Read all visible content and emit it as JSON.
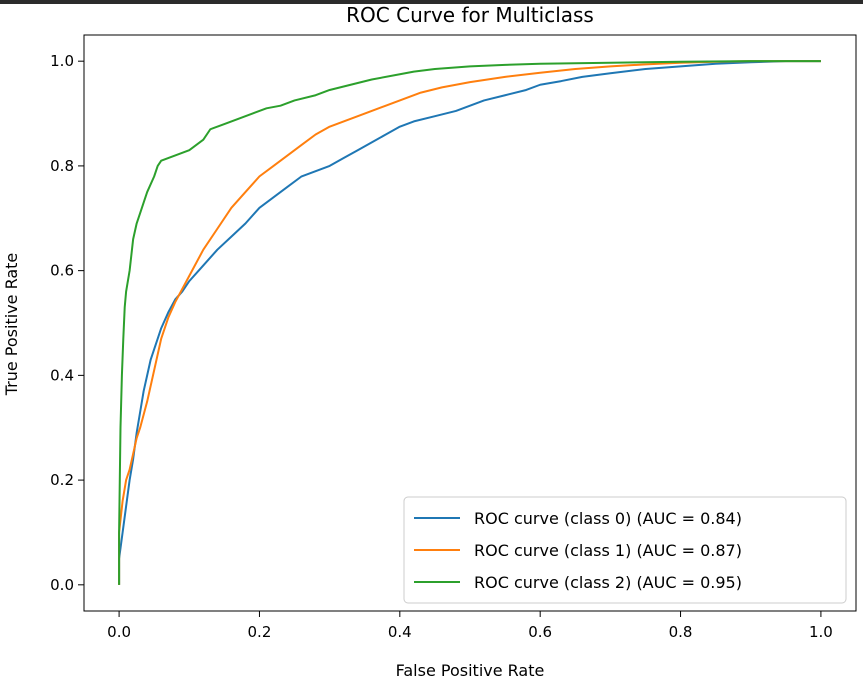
{
  "chart_data": {
    "type": "line",
    "title": "ROC Curve for Multiclass",
    "xlabel": "False Positive Rate",
    "ylabel": "True Positive Rate",
    "xlim": [
      -0.05,
      1.05
    ],
    "ylim": [
      -0.05,
      1.05
    ],
    "xticks": [
      0.0,
      0.2,
      0.4,
      0.6,
      0.8,
      1.0
    ],
    "xtick_labels": [
      "0.0",
      "0.2",
      "0.4",
      "0.6",
      "0.8",
      "1.0"
    ],
    "yticks": [
      0.0,
      0.2,
      0.4,
      0.6,
      0.8,
      1.0
    ],
    "ytick_labels": [
      "0.0",
      "0.2",
      "0.4",
      "0.6",
      "0.8",
      "1.0"
    ],
    "grid": false,
    "legend_position": "lower-right",
    "series": [
      {
        "name": "ROC curve (class 0) (AUC = 0.84)",
        "color": "#1f77b4",
        "x": [
          0.0,
          0.0,
          0.005,
          0.01,
          0.015,
          0.02,
          0.025,
          0.03,
          0.035,
          0.04,
          0.045,
          0.05,
          0.055,
          0.06,
          0.07,
          0.08,
          0.09,
          0.1,
          0.12,
          0.14,
          0.16,
          0.18,
          0.2,
          0.22,
          0.24,
          0.26,
          0.28,
          0.3,
          0.32,
          0.34,
          0.36,
          0.38,
          0.4,
          0.42,
          0.45,
          0.48,
          0.5,
          0.52,
          0.55,
          0.58,
          0.6,
          0.63,
          0.66,
          0.7,
          0.75,
          0.8,
          0.85,
          0.9,
          0.95,
          1.0
        ],
        "y": [
          0.0,
          0.05,
          0.1,
          0.15,
          0.2,
          0.24,
          0.29,
          0.33,
          0.37,
          0.4,
          0.43,
          0.45,
          0.47,
          0.49,
          0.52,
          0.545,
          0.56,
          0.58,
          0.61,
          0.64,
          0.665,
          0.69,
          0.72,
          0.74,
          0.76,
          0.78,
          0.79,
          0.8,
          0.815,
          0.83,
          0.845,
          0.86,
          0.875,
          0.885,
          0.895,
          0.905,
          0.915,
          0.925,
          0.935,
          0.945,
          0.955,
          0.962,
          0.97,
          0.977,
          0.985,
          0.99,
          0.995,
          0.998,
          1.0,
          1.0
        ]
      },
      {
        "name": "ROC curve (class 1) (AUC = 0.87)",
        "color": "#ff7f0e",
        "x": [
          0.0,
          0.0,
          0.005,
          0.01,
          0.015,
          0.02,
          0.025,
          0.03,
          0.04,
          0.05,
          0.06,
          0.07,
          0.08,
          0.1,
          0.12,
          0.14,
          0.16,
          0.18,
          0.2,
          0.22,
          0.24,
          0.26,
          0.28,
          0.3,
          0.32,
          0.35,
          0.38,
          0.4,
          0.43,
          0.46,
          0.5,
          0.55,
          0.6,
          0.65,
          0.7,
          0.75,
          0.8,
          0.85,
          0.9,
          0.95,
          1.0
        ],
        "y": [
          0.0,
          0.1,
          0.16,
          0.2,
          0.22,
          0.25,
          0.28,
          0.3,
          0.35,
          0.41,
          0.47,
          0.51,
          0.54,
          0.59,
          0.64,
          0.68,
          0.72,
          0.75,
          0.78,
          0.8,
          0.82,
          0.84,
          0.86,
          0.875,
          0.885,
          0.9,
          0.915,
          0.925,
          0.94,
          0.95,
          0.96,
          0.97,
          0.978,
          0.985,
          0.99,
          0.994,
          0.997,
          0.999,
          1.0,
          1.0,
          1.0
        ]
      },
      {
        "name": "ROC curve (class 2) (AUC = 0.95)",
        "color": "#2ca02c",
        "x": [
          0.0,
          0.0,
          0.002,
          0.004,
          0.006,
          0.008,
          0.01,
          0.015,
          0.02,
          0.025,
          0.03,
          0.035,
          0.04,
          0.05,
          0.055,
          0.06,
          0.07,
          0.08,
          0.1,
          0.12,
          0.13,
          0.15,
          0.17,
          0.19,
          0.21,
          0.23,
          0.25,
          0.28,
          0.3,
          0.33,
          0.36,
          0.4,
          0.42,
          0.45,
          0.5,
          0.55,
          0.6,
          0.7,
          0.8,
          0.9,
          1.0
        ],
        "y": [
          0.0,
          0.1,
          0.3,
          0.4,
          0.47,
          0.53,
          0.56,
          0.6,
          0.66,
          0.69,
          0.71,
          0.73,
          0.75,
          0.78,
          0.8,
          0.81,
          0.815,
          0.82,
          0.83,
          0.85,
          0.87,
          0.88,
          0.89,
          0.9,
          0.91,
          0.915,
          0.925,
          0.935,
          0.945,
          0.955,
          0.965,
          0.975,
          0.98,
          0.985,
          0.99,
          0.993,
          0.995,
          0.997,
          0.999,
          1.0,
          1.0
        ]
      }
    ]
  }
}
